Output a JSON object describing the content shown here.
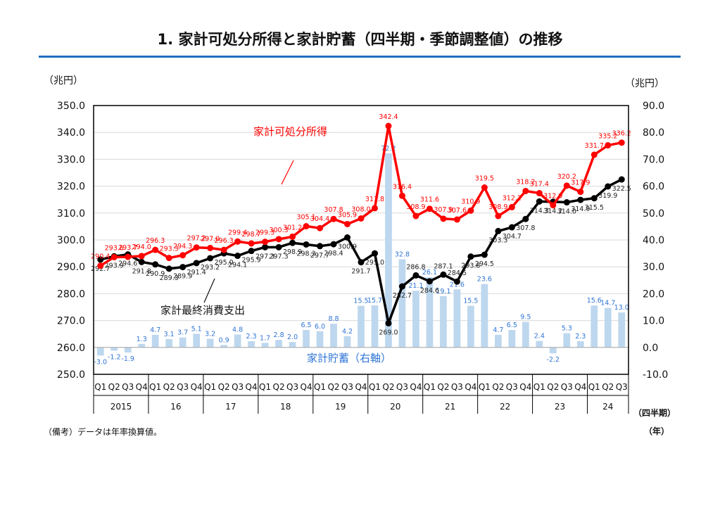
{
  "title": "1. 家計可処分所得と家計貯蓄（四半期・季節調整値）の推移",
  "left_unit": "（兆円）",
  "right_unit": "（兆円）",
  "quarter_unit": "（四半期）",
  "year_unit": "（年）",
  "note": "（備考）データは年率換算値。",
  "colors": {
    "income": "#ff0000",
    "consumption": "#000000",
    "savings": "#bdd7ee",
    "savings_label": "#2f75d6",
    "accent": "#1f6fc0"
  },
  "chart_data": {
    "type": "line+bar",
    "title": "家計可処分所得と家計貯蓄（四半期・季節調整値）の推移",
    "quarters": [
      "Q1",
      "Q2",
      "Q3",
      "Q4"
    ],
    "years": [
      "2015",
      "16",
      "17",
      "18",
      "19",
      "20",
      "21",
      "22",
      "23",
      "24"
    ],
    "x": [
      "2015Q1",
      "2015Q2",
      "2015Q3",
      "2015Q4",
      "2016Q1",
      "2016Q2",
      "2016Q3",
      "2016Q4",
      "2017Q1",
      "2017Q2",
      "2017Q3",
      "2017Q4",
      "2018Q1",
      "2018Q2",
      "2018Q3",
      "2018Q4",
      "2019Q1",
      "2019Q2",
      "2019Q3",
      "2019Q4",
      "2020Q1",
      "2020Q2",
      "2020Q3",
      "2020Q4",
      "2021Q1",
      "2021Q2",
      "2021Q3",
      "2021Q4",
      "2022Q1",
      "2022Q2",
      "2022Q3",
      "2022Q4",
      "2023Q1",
      "2023Q2",
      "2023Q3",
      "2023Q4",
      "2024Q1",
      "2024Q2",
      "2024Q3"
    ],
    "left_axis": {
      "ylim": [
        250,
        350
      ],
      "ticks": [
        "250.0",
        "260.0",
        "270.0",
        "280.0",
        "290.0",
        "300.0",
        "310.0",
        "320.0",
        "330.0",
        "340.0",
        "350.0"
      ]
    },
    "right_axis": {
      "ylim": [
        -10,
        90
      ],
      "ticks": [
        "-10.0",
        "0.0",
        "10.0",
        "20.0",
        "30.0",
        "40.0",
        "50.0",
        "60.0",
        "70.0",
        "80.0",
        "90.0"
      ]
    },
    "grid": true,
    "series": [
      {
        "name": "家計可処分所得",
        "type": "line",
        "axis": "left",
        "values": [
          290.4,
          293.6,
          293.7,
          294.0,
          296.3,
          293.3,
          294.3,
          297.2,
          297.0,
          296.3,
          299.4,
          298.7,
          299.3,
          300.3,
          301.2,
          305.1,
          304.4,
          307.8,
          305.9,
          308.0,
          311.8,
          342.4,
          316.4,
          308.9,
          311.6,
          307.9,
          307.6,
          310.9,
          319.5,
          308.9,
          312.2,
          318.2,
          317.4,
          312.9,
          320.2,
          317.9,
          331.7,
          335.2,
          336.2
        ]
      },
      {
        "name": "家計最終消費支出",
        "type": "line",
        "axis": "left",
        "values": [
          292.7,
          293.9,
          294.6,
          291.8,
          290.9,
          289.3,
          289.9,
          291.4,
          293.2,
          295.0,
          294.1,
          295.9,
          297.3,
          297.3,
          298.9,
          298.3,
          297.7,
          298.4,
          300.9,
          291.7,
          295.0,
          269.0,
          282.7,
          286.8,
          284.6,
          287.1,
          284.5,
          293.8,
          294.5,
          303.3,
          304.7,
          307.8,
          314.3,
          314.2,
          314.0,
          314.9,
          315.5,
          319.9,
          322.5
        ]
      },
      {
        "name": "家計貯蓄（右軸）",
        "type": "bar",
        "axis": "right",
        "values": [
          -3.0,
          -1.2,
          -1.9,
          1.3,
          4.7,
          3.1,
          3.7,
          5.1,
          3.2,
          0.9,
          4.8,
          2.3,
          1.7,
          2.8,
          2.0,
          6.5,
          6.0,
          8.8,
          4.2,
          15.5,
          15.7,
          72.2,
          32.8,
          21.1,
          26.1,
          19.1,
          21.6,
          15.5,
          23.6,
          4.7,
          6.5,
          9.5,
          2.4,
          -2.2,
          5.3,
          2.3,
          15.6,
          14.7,
          13.0
        ]
      }
    ]
  }
}
